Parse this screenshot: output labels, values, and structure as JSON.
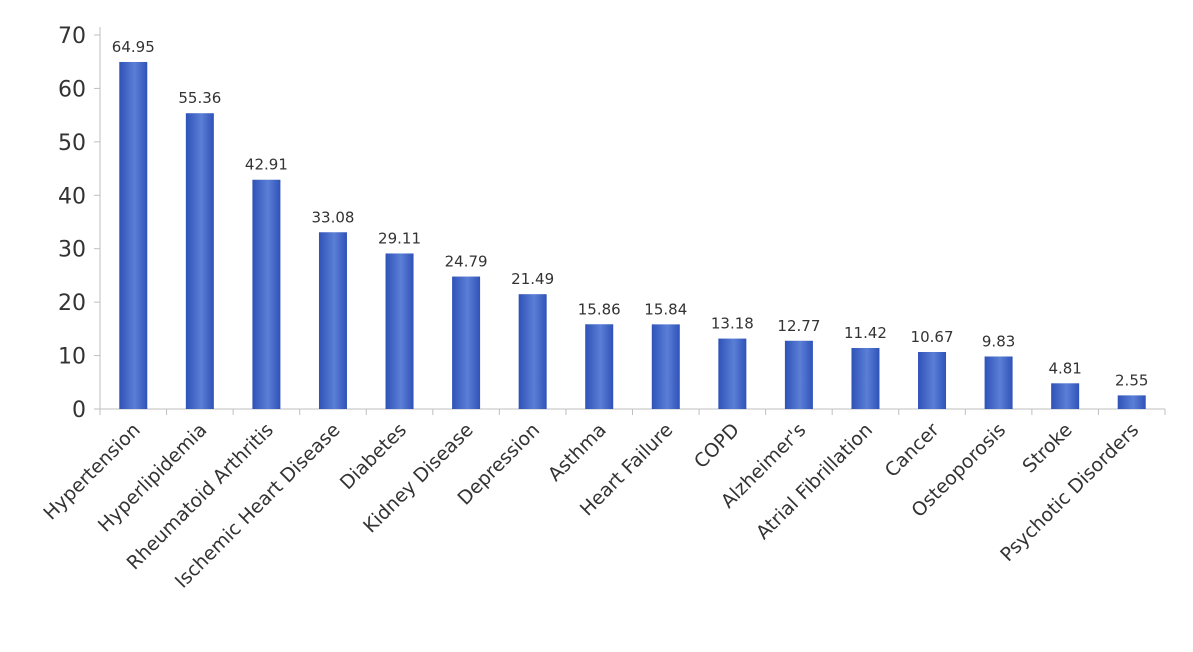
{
  "chart_data": {
    "type": "bar",
    "title": "",
    "xlabel": "",
    "ylabel": "",
    "ylim": [
      0,
      70
    ],
    "yticks": [
      0,
      10,
      20,
      30,
      40,
      50,
      60,
      70
    ],
    "grid": false,
    "legend": "none",
    "categories": [
      "Hypertension",
      "Hyperlipidemia",
      "Rheumatoid Arthritis",
      "Ischemic Heart Disease",
      "Diabetes",
      "Kidney Disease",
      "Depression",
      "Asthma",
      "Heart Failure",
      "COPD",
      "Alzheimer's",
      "Atrial Fibrillation",
      "Cancer",
      "Osteoporosis",
      "Stroke",
      "Psychotic Disorders"
    ],
    "values": [
      64.95,
      55.36,
      42.91,
      33.08,
      29.11,
      24.79,
      21.49,
      15.86,
      15.84,
      13.18,
      12.77,
      11.42,
      10.67,
      9.83,
      4.81,
      2.55
    ],
    "data_labels": [
      "64.95",
      "55.36",
      "42.91",
      "33.08",
      "29.11",
      "24.79",
      "21.49",
      "15.86",
      "15.84",
      "13.18",
      "12.77",
      "11.42",
      "10.67",
      "9.83",
      "4.81",
      "2.55"
    ],
    "bar_color_top": "#5b7fd6",
    "bar_color_bottom": "#2f52b8"
  }
}
